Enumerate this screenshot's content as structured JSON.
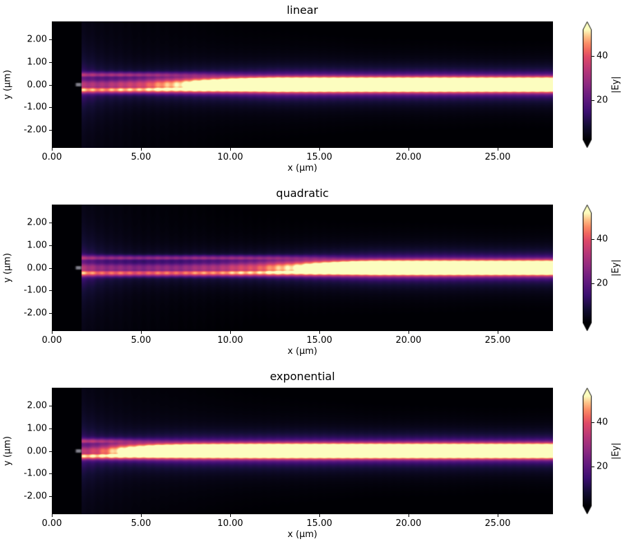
{
  "figure": {
    "background": "#ffffff",
    "text_color": "#000000"
  },
  "axes": {
    "x_ticks": {
      "values": [
        0,
        5,
        10,
        15,
        20,
        25
      ],
      "labels": [
        "0.00",
        "5.00",
        "10.00",
        "15.00",
        "20.00",
        "25.00"
      ]
    },
    "y_ticks": {
      "values": [
        2,
        1,
        0,
        -1,
        -2
      ],
      "labels": [
        "2.00",
        "1.00",
        "0.00",
        "-1.00",
        "-2.00"
      ]
    },
    "x_range": [
      0,
      28.1
    ],
    "y_range": [
      -2.8,
      2.8
    ]
  },
  "colorbar": {
    "label": "|Ey|",
    "ticks": {
      "values": [
        20,
        40
      ],
      "labels": [
        "20",
        "40"
      ]
    },
    "vmin": 2,
    "vmax": 52,
    "extend": "both"
  },
  "colormap": {
    "name": "magma",
    "stops": [
      [
        0.0,
        "#000004"
      ],
      [
        0.13,
        "#140e36"
      ],
      [
        0.25,
        "#3b0f70"
      ],
      [
        0.38,
        "#641a80"
      ],
      [
        0.5,
        "#8c2981"
      ],
      [
        0.63,
        "#b73779"
      ],
      [
        0.75,
        "#de4968"
      ],
      [
        0.83,
        "#f66f5c"
      ],
      [
        0.9,
        "#fe9f6d"
      ],
      [
        0.95,
        "#fece91"
      ],
      [
        1.0,
        "#fcfdbf"
      ]
    ]
  },
  "chart_data": [
    {
      "type": "heatmap",
      "title": "linear",
      "xlabel": "x (µm)",
      "ylabel": "y (µm)",
      "x_range": [
        0,
        28.1
      ],
      "y_range": [
        -2.8,
        2.8
      ],
      "colormap": "magma",
      "clim": [
        2,
        52
      ],
      "colorbar_label": "|Ey|",
      "colorbar_ticks": [
        20,
        40
      ],
      "colorbar_extend": "both",
      "beam": {
        "description": "Simulated |Ey| field magnitude: mode launched at x~1.65 um, intensity ramps linearly along x and saturates near x~13 um into one bright band at y=0",
        "source_x": 1.65,
        "center_y": 0,
        "core_halfwidth_um": 0.3,
        "start_value": 30,
        "peak_value": 52,
        "ramp": "linear",
        "saturation_length_um": 11
      },
      "features": [
        "darker block for x < 1.65 um",
        "gray mode-source marker at x~1.5 um, y=0",
        "twin bright lobes at y~+0.43 and -0.24 um merging into a single cream band",
        "purple halo out to |y|~1 um"
      ]
    },
    {
      "type": "heatmap",
      "title": "quadratic",
      "xlabel": "x (µm)",
      "ylabel": "y (µm)",
      "x_range": [
        0,
        28.1
      ],
      "y_range": [
        -2.8,
        2.8
      ],
      "colormap": "magma",
      "clim": [
        2,
        52
      ],
      "colorbar_label": "|Ey|",
      "colorbar_ticks": [
        20,
        40
      ],
      "colorbar_extend": "both",
      "beam": {
        "description": "Same field with quadratic ramp: lobes stay split with a dark center line until x~18 um, solid bright band only near the right edge",
        "source_x": 1.65,
        "center_y": 0,
        "core_halfwidth_um": 0.3,
        "start_value": 30,
        "peak_value": 52,
        "ramp": "quadratic",
        "saturation_length_um": 16.5
      },
      "features": [
        "dimmer early section",
        "latest merge into single band (~x=19 um)"
      ]
    },
    {
      "type": "heatmap",
      "title": "exponential",
      "xlabel": "x (µm)",
      "ylabel": "y (µm)",
      "x_range": [
        0,
        28.1
      ],
      "y_range": [
        -2.8,
        2.8
      ],
      "colormap": "magma",
      "clim": [
        2,
        52
      ],
      "colorbar_label": "|Ey|",
      "colorbar_ticks": [
        20,
        40
      ],
      "colorbar_extend": "both",
      "beam": {
        "description": "Same field with saturating-exponential ramp: bright stripes appear very early, solid cream band from x~13 um onward",
        "source_x": 1.65,
        "center_y": 0,
        "core_halfwidth_um": 0.3,
        "start_value": 30,
        "peak_value": 52,
        "ramp": "exponential",
        "rise_tau_um": 3.4
      },
      "features": [
        "brightest early growth of the three",
        "solid band from x~13 um"
      ]
    }
  ]
}
